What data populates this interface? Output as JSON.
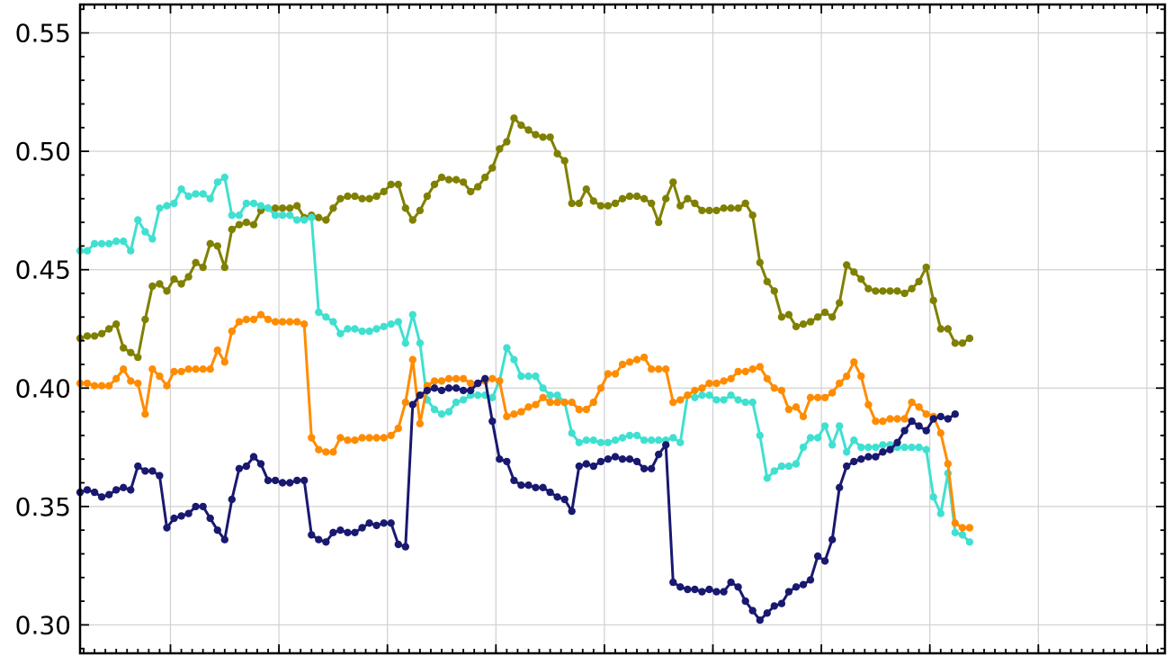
{
  "chart_data": {
    "type": "line",
    "title": "",
    "xlabel": "",
    "ylabel": "",
    "xlim": [
      0,
      150
    ],
    "ylim": [
      0.288,
      0.562
    ],
    "yticks": [
      0.3,
      0.35,
      0.4,
      0.45,
      0.5,
      0.55
    ],
    "ytick_labels": [
      "0.30",
      "0.35",
      "0.40",
      "0.45",
      "0.50",
      "0.55"
    ],
    "xticks_major": [
      12.5,
      27.5,
      42.5,
      57.5,
      72.5,
      87.5,
      102.5,
      117.5,
      132.5,
      147.5
    ],
    "xtick_labels": [],
    "grid": true,
    "series": [
      {
        "color": "#808000",
        "values": [
          0.421,
          0.422,
          0.422,
          0.423,
          0.425,
          0.427,
          0.417,
          0.415,
          0.413,
          0.429,
          0.443,
          0.444,
          0.441,
          0.446,
          0.444,
          0.447,
          0.453,
          0.451,
          0.461,
          0.46,
          0.451,
          0.467,
          0.469,
          0.47,
          0.469,
          0.475,
          0.476,
          0.476,
          0.476,
          0.476,
          0.477,
          0.472,
          0.473,
          0.472,
          0.471,
          0.476,
          0.48,
          0.481,
          0.481,
          0.48,
          0.48,
          0.481,
          0.483,
          0.486,
          0.486,
          0.476,
          0.471,
          0.475,
          0.481,
          0.486,
          0.489,
          0.488,
          0.488,
          0.487,
          0.483,
          0.485,
          0.489,
          0.493,
          0.501,
          0.504,
          0.514,
          0.511,
          0.509,
          0.507,
          0.506,
          0.506,
          0.499,
          0.496,
          0.478,
          0.478,
          0.484,
          0.479,
          0.477,
          0.477,
          0.478,
          0.48,
          0.481,
          0.481,
          0.48,
          0.478,
          0.47,
          0.48,
          0.487,
          0.477,
          0.48,
          0.478,
          0.475,
          0.475,
          0.475,
          0.476,
          0.476,
          0.476,
          0.478,
          0.473,
          0.453,
          0.445,
          0.441,
          0.43,
          0.431,
          0.426,
          0.427,
          0.428,
          0.43,
          0.432,
          0.43,
          0.436,
          0.452,
          0.449,
          0.446,
          0.442,
          0.441,
          0.441,
          0.441,
          0.441,
          0.44,
          0.442,
          0.445,
          0.451,
          0.437,
          0.425,
          0.425,
          0.419,
          0.419,
          0.421
        ]
      },
      {
        "color": "#40e0d0",
        "values": [
          0.458,
          0.458,
          0.461,
          0.461,
          0.461,
          0.462,
          0.462,
          0.458,
          0.471,
          0.466,
          0.463,
          0.476,
          0.477,
          0.478,
          0.484,
          0.481,
          0.482,
          0.482,
          0.48,
          0.487,
          0.489,
          0.473,
          0.473,
          0.478,
          0.478,
          0.477,
          0.476,
          0.473,
          0.473,
          0.473,
          0.471,
          0.471,
          0.472,
          0.432,
          0.43,
          0.428,
          0.423,
          0.425,
          0.425,
          0.424,
          0.424,
          0.425,
          0.426,
          0.427,
          0.428,
          0.419,
          0.431,
          0.419,
          0.395,
          0.391,
          0.389,
          0.39,
          0.394,
          0.395,
          0.397,
          0.397,
          0.397,
          0.396,
          0.403,
          0.417,
          0.412,
          0.405,
          0.405,
          0.405,
          0.4,
          0.397,
          0.397,
          0.394,
          0.381,
          0.377,
          0.378,
          0.378,
          0.377,
          0.377,
          0.378,
          0.379,
          0.38,
          0.38,
          0.378,
          0.378,
          0.378,
          0.378,
          0.379,
          0.377,
          0.397,
          0.396,
          0.397,
          0.397,
          0.395,
          0.395,
          0.397,
          0.395,
          0.394,
          0.394,
          0.38,
          0.362,
          0.365,
          0.367,
          0.367,
          0.368,
          0.375,
          0.379,
          0.379,
          0.384,
          0.376,
          0.384,
          0.373,
          0.378,
          0.375,
          0.375,
          0.375,
          0.376,
          0.376,
          0.375,
          0.375,
          0.375,
          0.375,
          0.374,
          0.354,
          0.347,
          0.364,
          0.339,
          0.338,
          0.335
        ]
      },
      {
        "color": "#ff8c00",
        "values": [
          0.402,
          0.402,
          0.401,
          0.401,
          0.401,
          0.404,
          0.408,
          0.403,
          0.402,
          0.389,
          0.408,
          0.405,
          0.401,
          0.407,
          0.407,
          0.408,
          0.408,
          0.408,
          0.408,
          0.416,
          0.411,
          0.424,
          0.428,
          0.429,
          0.429,
          0.431,
          0.429,
          0.428,
          0.428,
          0.428,
          0.428,
          0.427,
          0.379,
          0.374,
          0.373,
          0.373,
          0.379,
          0.378,
          0.378,
          0.379,
          0.379,
          0.379,
          0.379,
          0.38,
          0.383,
          0.394,
          0.412,
          0.385,
          0.401,
          0.403,
          0.403,
          0.404,
          0.404,
          0.404,
          0.402,
          0.402,
          0.403,
          0.404,
          0.403,
          0.388,
          0.389,
          0.39,
          0.392,
          0.393,
          0.396,
          0.394,
          0.394,
          0.394,
          0.394,
          0.391,
          0.391,
          0.394,
          0.4,
          0.406,
          0.406,
          0.41,
          0.411,
          0.412,
          0.413,
          0.408,
          0.408,
          0.408,
          0.394,
          0.395,
          0.397,
          0.399,
          0.4,
          0.402,
          0.402,
          0.403,
          0.404,
          0.407,
          0.407,
          0.408,
          0.409,
          0.404,
          0.4,
          0.399,
          0.391,
          0.392,
          0.388,
          0.396,
          0.396,
          0.396,
          0.398,
          0.402,
          0.405,
          0.411,
          0.405,
          0.393,
          0.386,
          0.386,
          0.387,
          0.387,
          0.387,
          0.394,
          0.392,
          0.389,
          0.388,
          0.381,
          0.368,
          0.343,
          0.341,
          0.341
        ]
      },
      {
        "color": "#191970",
        "values": [
          0.356,
          0.357,
          0.356,
          0.354,
          0.355,
          0.357,
          0.358,
          0.357,
          0.367,
          0.365,
          0.365,
          0.363,
          0.341,
          0.345,
          0.346,
          0.347,
          0.35,
          0.35,
          0.345,
          0.34,
          0.336,
          0.353,
          0.366,
          0.367,
          0.371,
          0.368,
          0.361,
          0.361,
          0.36,
          0.36,
          0.361,
          0.361,
          0.338,
          0.336,
          0.335,
          0.339,
          0.34,
          0.339,
          0.339,
          0.341,
          0.343,
          0.342,
          0.343,
          0.343,
          0.334,
          0.333,
          0.393,
          0.397,
          0.399,
          0.4,
          0.399,
          0.4,
          0.4,
          0.399,
          0.399,
          0.402,
          0.404,
          0.386,
          0.37,
          0.369,
          0.361,
          0.359,
          0.359,
          0.358,
          0.358,
          0.356,
          0.354,
          0.353,
          0.348,
          0.367,
          0.368,
          0.367,
          0.369,
          0.37,
          0.371,
          0.37,
          0.37,
          0.369,
          0.366,
          0.366,
          0.372,
          0.376,
          0.318,
          0.316,
          0.315,
          0.315,
          0.314,
          0.315,
          0.314,
          0.314,
          0.318,
          0.316,
          0.31,
          0.306,
          0.302,
          0.305,
          0.308,
          0.309,
          0.314,
          0.316,
          0.317,
          0.319,
          0.329,
          0.327,
          0.336,
          0.358,
          0.367,
          0.369,
          0.37,
          0.371,
          0.371,
          0.373,
          0.374,
          0.377,
          0.382,
          0.386,
          0.384,
          0.382,
          0.387,
          0.388,
          0.387,
          0.389
        ]
      }
    ]
  }
}
